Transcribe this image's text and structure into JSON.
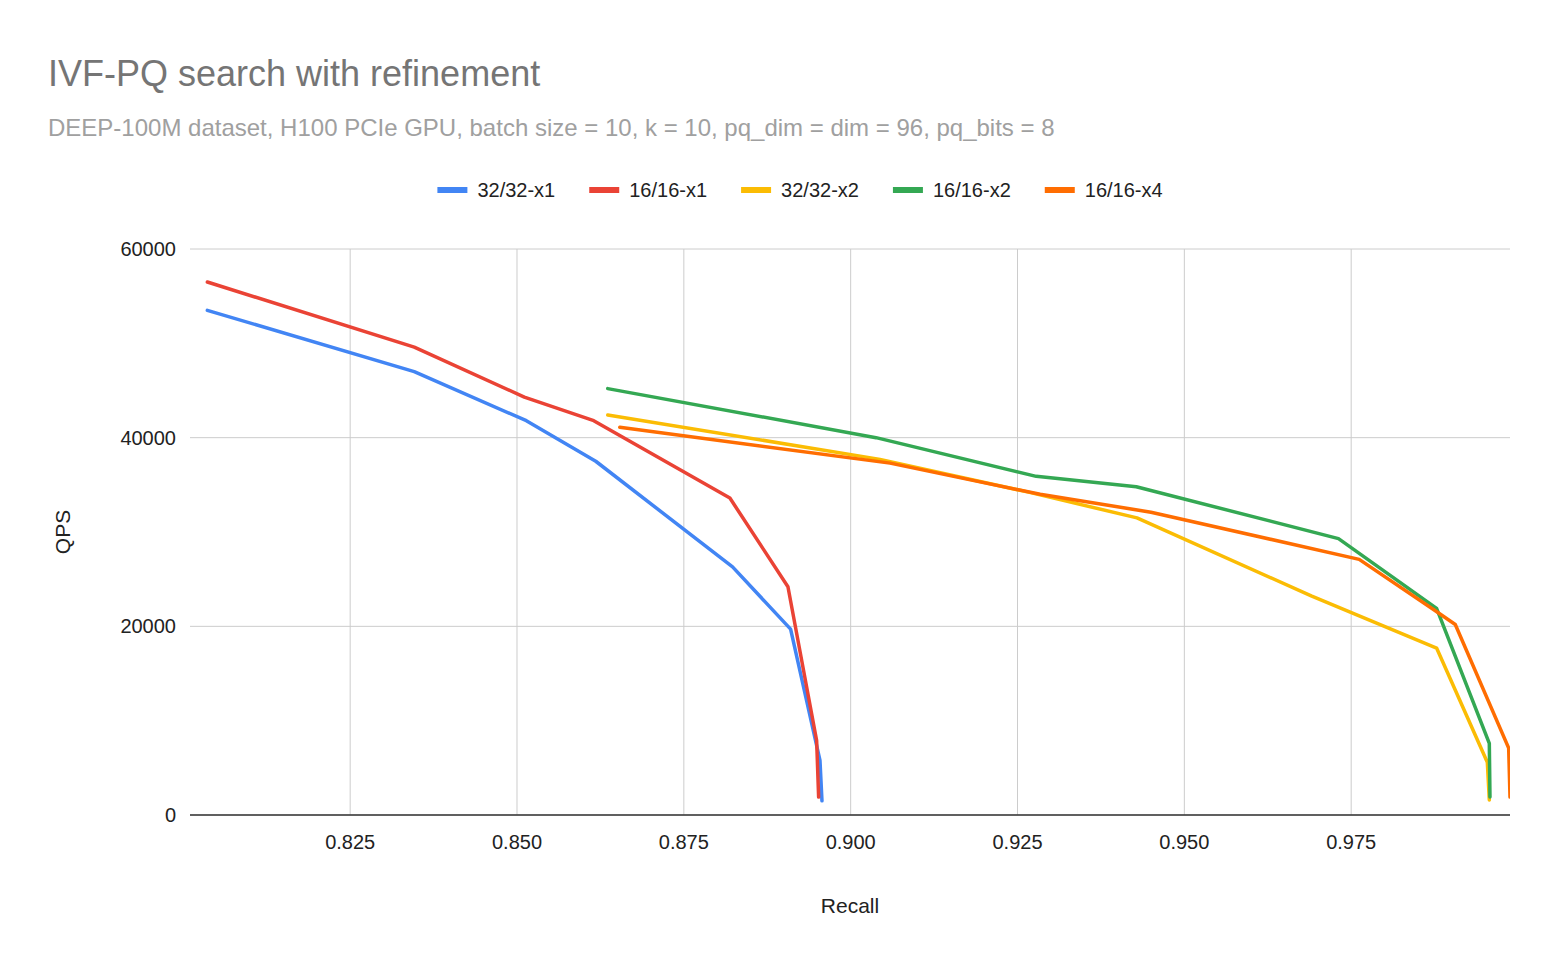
{
  "chart_data": {
    "type": "line",
    "title": "IVF-PQ search with refinement",
    "subtitle": "DEEP-100M dataset, H100 PCIe GPU, batch size = 10, k = 10, pq_dim = dim = 96, pq_bits = 8",
    "x_label": "Recall",
    "y_label": "QPS",
    "xlim": [
      0.801,
      0.9988
    ],
    "xticks": [
      0.825,
      0.85,
      0.875,
      0.9,
      0.925,
      0.95,
      0.975
    ],
    "ylim": [
      0,
      60000
    ],
    "yticks": [
      0,
      20000,
      40000,
      60000
    ],
    "grid": true,
    "legend": "top",
    "series": [
      {
        "name": "32/32-x1",
        "color": "#4285f4",
        "x": [
          0.8036,
          0.8346,
          0.8514,
          0.8618,
          0.8823,
          0.891,
          0.8954,
          0.8957
        ],
        "values": [
          53500,
          47000,
          41800,
          37500,
          26300,
          19700,
          5800,
          1500
        ]
      },
      {
        "name": "16/16-x1",
        "color": "#ea4335",
        "x": [
          0.8036,
          0.8346,
          0.8511,
          0.8615,
          0.8819,
          0.8906,
          0.8949,
          0.8952
        ],
        "values": [
          56500,
          49600,
          44300,
          41800,
          33600,
          24200,
          7900,
          1900
        ]
      },
      {
        "name": "32/32-x2",
        "color": "#fbbc04",
        "x": [
          0.8636,
          0.9044,
          0.9268,
          0.9429,
          0.9691,
          0.9878,
          0.9954,
          0.9957
        ],
        "values": [
          42400,
          37700,
          34200,
          31500,
          23200,
          17700,
          5600,
          1600
        ]
      },
      {
        "name": "16/16-x2",
        "color": "#34a853",
        "x": [
          0.8636,
          0.9038,
          0.9278,
          0.9428,
          0.9731,
          0.9878,
          0.9957,
          0.9958
        ],
        "values": [
          45200,
          40000,
          35900,
          34800,
          29300,
          21900,
          7600,
          1900
        ]
      },
      {
        "name": "16/16-x4",
        "color": "#ff6d01",
        "x": [
          0.8654,
          0.9059,
          0.9284,
          0.945,
          0.9762,
          0.9875,
          0.9906,
          0.9986,
          0.9988
        ],
        "values": [
          41100,
          37300,
          34000,
          32100,
          27100,
          21700,
          20200,
          7100,
          1900
        ]
      }
    ]
  }
}
